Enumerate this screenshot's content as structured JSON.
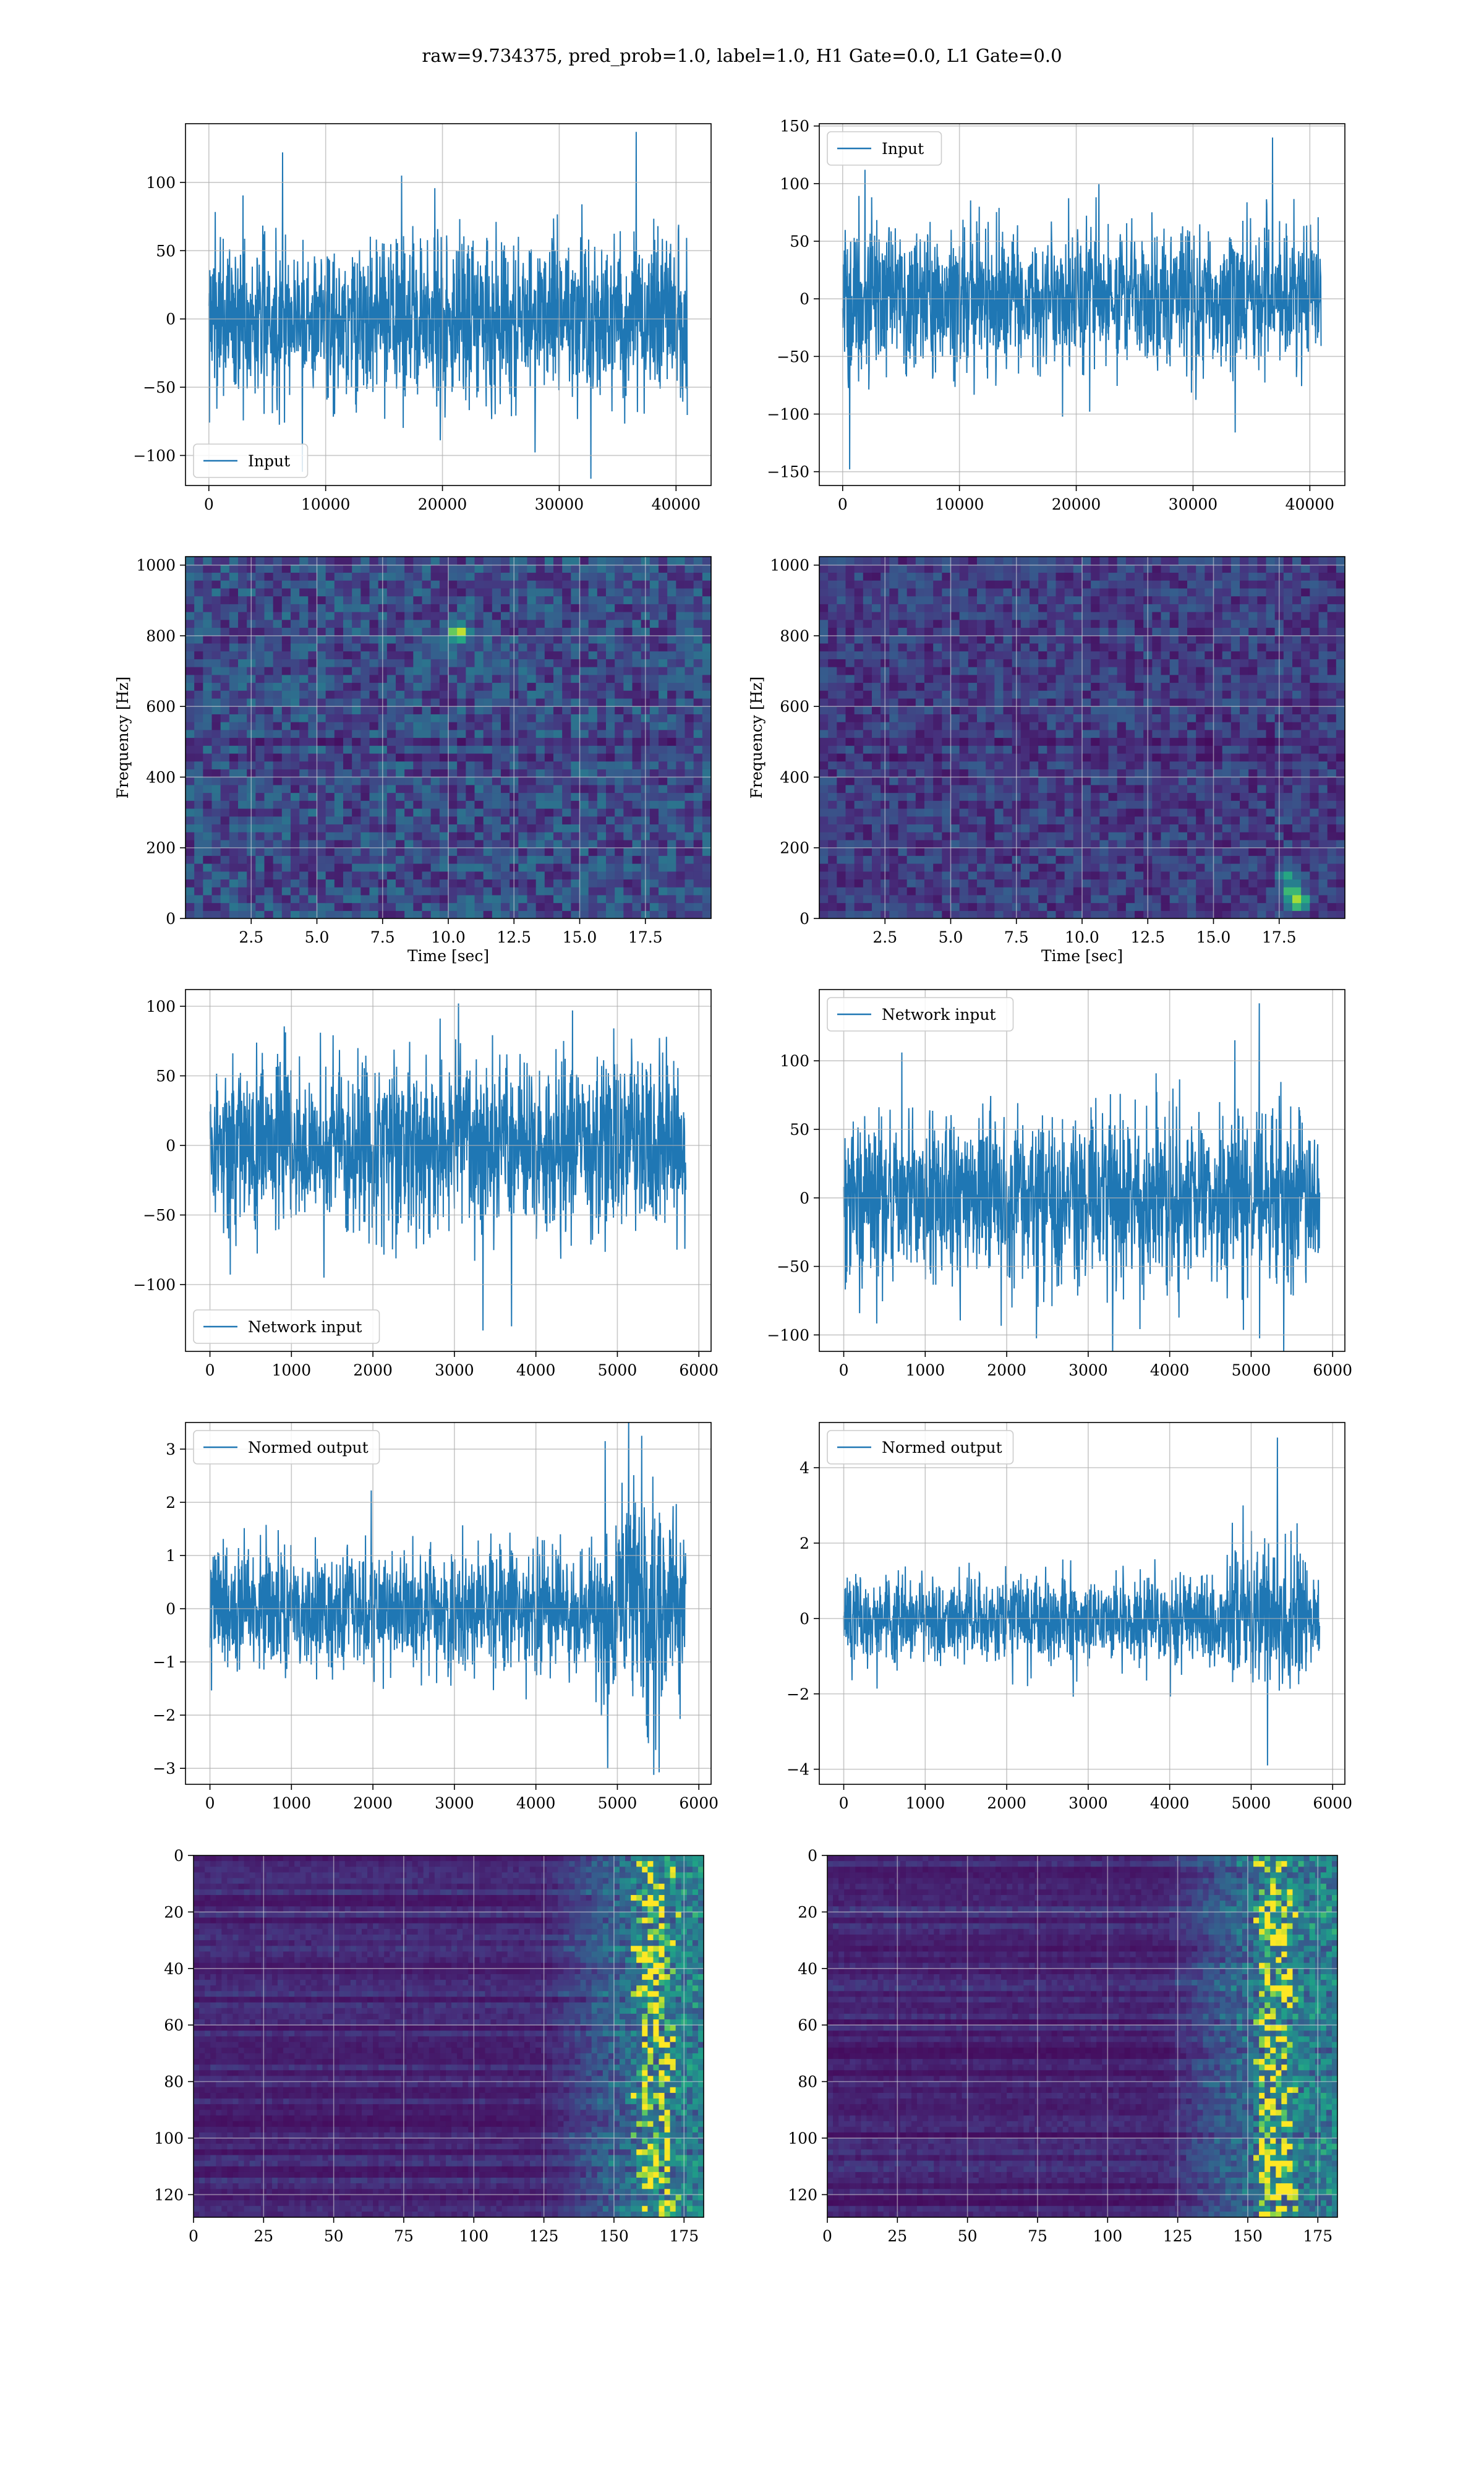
{
  "figure": {
    "suptitle": "raw=9.734375, pred_prob=1.0, label=1.0, H1 Gate=0.0, L1 Gate=0.0"
  },
  "colors": {
    "line": "#1f77b4",
    "grid": "#b0b0b0",
    "viridis": [
      "#440154",
      "#46327e",
      "#365c8d",
      "#277f8e",
      "#1fa187",
      "#4ac16d",
      "#a0da39",
      "#fde725"
    ]
  },
  "chart_data": [
    {
      "id": "input-h1",
      "type": "line",
      "legend": "Input",
      "legend_loc": "lower-left",
      "xlim": [
        -2000,
        43000
      ],
      "ylim": [
        -122,
        143
      ],
      "xticks": [
        0,
        10000,
        20000,
        30000,
        40000
      ],
      "xtick_labels": [
        "0",
        "10000",
        "20000",
        "30000",
        "40000"
      ],
      "yticks": [
        -100,
        -50,
        0,
        50,
        100
      ],
      "ytick_labels": [
        "−100",
        "−50",
        "0",
        "50",
        "100"
      ],
      "signal": {
        "x_start": 0,
        "x_end": 40960,
        "base": 30,
        "peaks": [
          [
            6300,
            122
          ],
          [
            16500,
            105
          ],
          [
            36600,
            137
          ],
          [
            32700,
            -117
          ],
          [
            8000,
            -112
          ]
        ]
      },
      "grid": true
    },
    {
      "id": "input-l1",
      "type": "line",
      "legend": "Input",
      "legend_loc": "upper-left",
      "xlim": [
        -2000,
        43000
      ],
      "ylim": [
        -162,
        152
      ],
      "xticks": [
        0,
        10000,
        20000,
        30000,
        40000
      ],
      "xtick_labels": [
        "0",
        "10000",
        "20000",
        "30000",
        "40000"
      ],
      "yticks": [
        -150,
        -100,
        -50,
        0,
        50,
        100,
        150
      ],
      "ytick_labels": [
        "−150",
        "−100",
        "−50",
        "0",
        "50",
        "100",
        "150"
      ],
      "signal": {
        "x_start": 0,
        "x_end": 40960,
        "base": 31,
        "peaks": [
          [
            600,
            -148
          ],
          [
            36800,
            140
          ],
          [
            33600,
            -116
          ],
          [
            1900,
            112
          ]
        ]
      },
      "grid": true
    },
    {
      "id": "spectrogram-h1",
      "type": "heatmap",
      "xlabel": "Time [sec]",
      "ylabel": "Frequency [Hz]",
      "xlim": [
        0,
        20
      ],
      "ylim": [
        0,
        1024
      ],
      "xticks": [
        2.5,
        5.0,
        7.5,
        10.0,
        12.5,
        15.0,
        17.5
      ],
      "xtick_labels": [
        "2.5",
        "5.0",
        "7.5",
        "10.0",
        "12.5",
        "15.0",
        "17.5"
      ],
      "yticks": [
        0,
        200,
        400,
        600,
        800,
        1000
      ],
      "ytick_labels": [
        "0",
        "200",
        "400",
        "600",
        "800",
        "1000"
      ],
      "colormap": "viridis",
      "level": 0.26,
      "bands": [
        [
          500,
          0.55
        ],
        [
          456,
          0.7
        ]
      ],
      "hotspots": [
        [
          10.4,
          810,
          0.95
        ]
      ],
      "grid": true
    },
    {
      "id": "spectrogram-l1",
      "type": "heatmap",
      "xlabel": "Time [sec]",
      "ylabel": "Frequency [Hz]",
      "xlim": [
        0,
        20
      ],
      "ylim": [
        0,
        1024
      ],
      "xticks": [
        2.5,
        5.0,
        7.5,
        10.0,
        12.5,
        15.0,
        17.5
      ],
      "xtick_labels": [
        "2.5",
        "5.0",
        "7.5",
        "10.0",
        "12.5",
        "15.0",
        "17.5"
      ],
      "yticks": [
        0,
        200,
        400,
        600,
        800,
        1000
      ],
      "ytick_labels": [
        "0",
        "200",
        "400",
        "600",
        "800",
        "1000"
      ],
      "colormap": "viridis",
      "level": 0.2,
      "bands": [
        [
          500,
          0.55
        ],
        [
          460,
          0.7
        ]
      ],
      "hotspots": [
        [
          18.2,
          50,
          0.9
        ],
        [
          18.0,
          80,
          0.75
        ],
        [
          17.8,
          120,
          0.6
        ]
      ],
      "grid": true
    },
    {
      "id": "network-input-h1",
      "type": "line",
      "legend": "Network input",
      "legend_loc": "lower-left",
      "xlim": [
        -300,
        6150
      ],
      "ylim": [
        -148,
        112
      ],
      "xticks": [
        0,
        1000,
        2000,
        3000,
        4000,
        5000,
        6000
      ],
      "xtick_labels": [
        "0",
        "1000",
        "2000",
        "3000",
        "4000",
        "5000",
        "6000"
      ],
      "yticks": [
        -100,
        -50,
        0,
        50,
        100
      ],
      "ytick_labels": [
        "−100",
        "−50",
        "0",
        "50",
        "100"
      ],
      "signal": {
        "x_start": 0,
        "x_end": 5840,
        "base": 32,
        "peaks": [
          [
            3050,
            102
          ],
          [
            3350,
            -133
          ],
          [
            3700,
            -130
          ],
          [
            1400,
            -95
          ],
          [
            4450,
            97
          ]
        ]
      },
      "grid": true
    },
    {
      "id": "network-input-l1",
      "type": "line",
      "legend": "Network input",
      "legend_loc": "upper-left",
      "xlim": [
        -300,
        6150
      ],
      "ylim": [
        -112,
        152
      ],
      "xticks": [
        0,
        1000,
        2000,
        3000,
        4000,
        5000,
        6000
      ],
      "xtick_labels": [
        "0",
        "1000",
        "2000",
        "3000",
        "4000",
        "5000",
        "6000"
      ],
      "yticks": [
        -100,
        -50,
        0,
        50,
        100
      ],
      "ytick_labels": [
        "−100",
        "−50",
        "0",
        "50",
        "100"
      ],
      "signal": {
        "x_start": 0,
        "x_end": 5840,
        "base": 31,
        "peaks": [
          [
            5100,
            142
          ],
          [
            3300,
            -117
          ],
          [
            5400,
            -113
          ],
          [
            4800,
            115
          ]
        ]
      },
      "grid": true
    },
    {
      "id": "normed-output-h1",
      "type": "line",
      "legend": "Normed output",
      "legend_loc": "upper-left",
      "xlim": [
        -300,
        6150
      ],
      "ylim": [
        -3.3,
        3.5
      ],
      "xticks": [
        0,
        1000,
        2000,
        3000,
        4000,
        5000,
        6000
      ],
      "xtick_labels": [
        "0",
        "1000",
        "2000",
        "3000",
        "4000",
        "5000",
        "6000"
      ],
      "yticks": [
        -3,
        -2,
        -1,
        0,
        1,
        2,
        3
      ],
      "ytick_labels": [
        "−3",
        "−2",
        "−1",
        "0",
        "1",
        "2",
        "3"
      ],
      "signal": {
        "x_start": 0,
        "x_end": 5840,
        "base": 0.58,
        "burst": [
          4700,
          5840,
          1.85
        ],
        "peaks": [
          [
            4880,
            -3.0
          ],
          [
            5300,
            3.25
          ],
          [
            4850,
            3.15
          ]
        ]
      },
      "grid": true
    },
    {
      "id": "normed-output-l1",
      "type": "line",
      "legend": "Normed output",
      "legend_loc": "upper-left",
      "xlim": [
        -300,
        6150
      ],
      "ylim": [
        -4.4,
        5.2
      ],
      "xticks": [
        0,
        1000,
        2000,
        3000,
        4000,
        5000,
        6000
      ],
      "xtick_labels": [
        "0",
        "1000",
        "2000",
        "3000",
        "4000",
        "5000",
        "6000"
      ],
      "yticks": [
        -4,
        -2,
        0,
        2,
        4
      ],
      "ytick_labels": [
        "−4",
        "−2",
        "0",
        "2",
        "4"
      ],
      "signal": {
        "x_start": 0,
        "x_end": 5840,
        "base": 0.58,
        "burst": [
          4700,
          5700,
          1.6
        ],
        "peaks": [
          [
            5320,
            4.8
          ],
          [
            5200,
            -3.9
          ],
          [
            4900,
            3.0
          ]
        ]
      },
      "grid": true
    },
    {
      "id": "feature-map-h1",
      "type": "heatmap",
      "xlim": [
        0,
        182
      ],
      "ylim": [
        128,
        0
      ],
      "xticks": [
        0,
        25,
        50,
        75,
        100,
        125,
        150,
        175
      ],
      "xtick_labels": [
        "0",
        "25",
        "50",
        "75",
        "100",
        "125",
        "150",
        "175"
      ],
      "yticks": [
        0,
        20,
        40,
        60,
        80,
        100,
        120
      ],
      "ytick_labels": [
        "0",
        "20",
        "40",
        "60",
        "80",
        "100",
        "120"
      ],
      "colormap": "viridis",
      "activity_start": 125,
      "activity_peak": 165,
      "grid": true
    },
    {
      "id": "feature-map-l1",
      "type": "heatmap",
      "xlim": [
        0,
        182
      ],
      "ylim": [
        128,
        0
      ],
      "xticks": [
        0,
        25,
        50,
        75,
        100,
        125,
        150,
        175
      ],
      "xtick_labels": [
        "0",
        "25",
        "50",
        "75",
        "100",
        "125",
        "150",
        "175"
      ],
      "yticks": [
        0,
        20,
        40,
        60,
        80,
        100,
        120
      ],
      "ytick_labels": [
        "0",
        "20",
        "40",
        "60",
        "80",
        "100",
        "120"
      ],
      "colormap": "viridis",
      "activity_start": 120,
      "activity_peak": 160,
      "grid": true
    }
  ]
}
